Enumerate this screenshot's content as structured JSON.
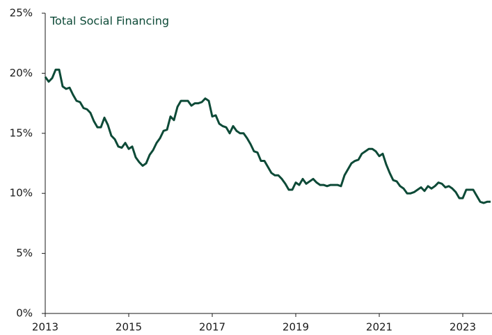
{
  "chart_data": {
    "type": "line",
    "title": "Total Social Financing",
    "x": [
      2013,
      2013.083,
      2013.167,
      2013.25,
      2013.333,
      2013.417,
      2013.5,
      2013.583,
      2013.667,
      2013.75,
      2013.833,
      2013.917,
      2014,
      2014.083,
      2014.167,
      2014.25,
      2014.333,
      2014.417,
      2014.5,
      2014.583,
      2014.667,
      2014.75,
      2014.833,
      2014.917,
      2015,
      2015.083,
      2015.167,
      2015.25,
      2015.333,
      2015.417,
      2015.5,
      2015.583,
      2015.667,
      2015.75,
      2015.833,
      2015.917,
      2016,
      2016.083,
      2016.167,
      2016.25,
      2016.333,
      2016.417,
      2016.5,
      2016.583,
      2016.667,
      2016.75,
      2016.833,
      2016.917,
      2017,
      2017.083,
      2017.167,
      2017.25,
      2017.333,
      2017.417,
      2017.5,
      2017.583,
      2017.667,
      2017.75,
      2017.833,
      2017.917,
      2018,
      2018.083,
      2018.167,
      2018.25,
      2018.333,
      2018.417,
      2018.5,
      2018.583,
      2018.667,
      2018.75,
      2018.833,
      2018.917,
      2019,
      2019.083,
      2019.167,
      2019.25,
      2019.333,
      2019.417,
      2019.5,
      2019.583,
      2019.667,
      2019.75,
      2019.833,
      2019.917,
      2020,
      2020.083,
      2020.167,
      2020.25,
      2020.333,
      2020.417,
      2020.5,
      2020.583,
      2020.667,
      2020.75,
      2020.833,
      2020.917,
      2021,
      2021.083,
      2021.167,
      2021.25,
      2021.333,
      2021.417,
      2021.5,
      2021.583,
      2021.667,
      2021.75,
      2021.833,
      2021.917,
      2022,
      2022.083,
      2022.167,
      2022.25,
      2022.333,
      2022.417,
      2022.5,
      2022.583,
      2022.667,
      2022.75,
      2022.833,
      2022.917,
      2023,
      2023.083,
      2023.167,
      2023.25,
      2023.333,
      2023.417,
      2023.5,
      2023.583,
      2023.667
    ],
    "values": [
      19.7,
      19.3,
      19.6,
      20.3,
      20.3,
      18.9,
      18.7,
      18.8,
      18.2,
      17.7,
      17.6,
      17.1,
      17.0,
      16.7,
      16.0,
      15.5,
      15.5,
      16.3,
      15.7,
      14.8,
      14.5,
      13.9,
      13.8,
      14.2,
      13.7,
      13.9,
      13.0,
      12.6,
      12.3,
      12.5,
      13.2,
      13.6,
      14.2,
      14.6,
      15.2,
      15.3,
      16.4,
      16.1,
      17.2,
      17.7,
      17.7,
      17.7,
      17.3,
      17.5,
      17.5,
      17.6,
      17.9,
      17.7,
      16.4,
      16.5,
      15.8,
      15.6,
      15.5,
      15.0,
      15.6,
      15.2,
      15.0,
      15.0,
      14.6,
      14.1,
      13.5,
      13.4,
      12.7,
      12.7,
      12.2,
      11.7,
      11.5,
      11.5,
      11.2,
      10.8,
      10.3,
      10.3,
      10.9,
      10.7,
      11.2,
      10.8,
      11.0,
      11.2,
      10.9,
      10.7,
      10.7,
      10.6,
      10.7,
      10.7,
      10.7,
      10.6,
      11.5,
      12.0,
      12.5,
      12.7,
      12.8,
      13.3,
      13.5,
      13.7,
      13.7,
      13.5,
      13.1,
      13.3,
      12.4,
      11.7,
      11.1,
      11.0,
      10.6,
      10.4,
      10.0,
      10.0,
      10.1,
      10.3,
      10.5,
      10.2,
      10.6,
      10.4,
      10.6,
      10.9,
      10.8,
      10.5,
      10.6,
      10.4,
      10.1,
      9.6,
      9.6,
      10.3,
      10.3,
      10.3,
      9.8,
      9.3,
      9.2,
      9.3,
      9.3
    ],
    "color": "#0d4a37",
    "xlim": [
      2013,
      2023.7
    ],
    "xticks": [
      2013,
      2015,
      2017,
      2019,
      2021,
      2023
    ],
    "ylim": [
      0,
      25
    ],
    "yticks": [
      {
        "value": 0,
        "label": "0%"
      },
      {
        "value": 5,
        "label": "5%"
      },
      {
        "value": 10,
        "label": "10%"
      },
      {
        "value": 15,
        "label": "15%"
      },
      {
        "value": 20,
        "label": "20%"
      },
      {
        "value": 25,
        "label": "25%"
      }
    ],
    "grid": false
  }
}
